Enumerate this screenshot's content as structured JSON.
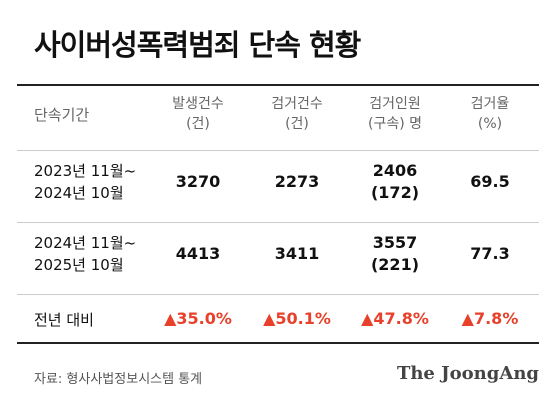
{
  "title": "사이버성폭력범죄 단속 현황",
  "table": {
    "headers": [
      {
        "line1": "단속기간",
        "line2": ""
      },
      {
        "line1": "발생건수",
        "line2": "(건)"
      },
      {
        "line1": "검거건수",
        "line2": "(건)"
      },
      {
        "line1": "검거인원",
        "line2": "(구속) 명"
      },
      {
        "line1": "검거율",
        "line2": "(%)"
      }
    ],
    "rows": [
      {
        "period1": "2023년 11월~",
        "period2": "2024년 10월",
        "occur": "3270",
        "arrest": "2273",
        "people1": "2406",
        "people2": "(172)",
        "rate": "69.5"
      },
      {
        "period1": "2024년 11월~",
        "period2": "2025년 10월",
        "occur": "4413",
        "arrest": "3411",
        "people1": "3557",
        "people2": "(221)",
        "rate": "77.3"
      }
    ],
    "compare": {
      "label": "전년 대비",
      "arrow": "▲",
      "occur": "35.0%",
      "arrest": "50.1%",
      "people": "47.8%",
      "rate": "7.8%"
    }
  },
  "source": "자료: 형사사법정보시스템 통계",
  "brand": "The JoongAng",
  "colors": {
    "increase": "#e8412b",
    "rule": "#222222"
  }
}
